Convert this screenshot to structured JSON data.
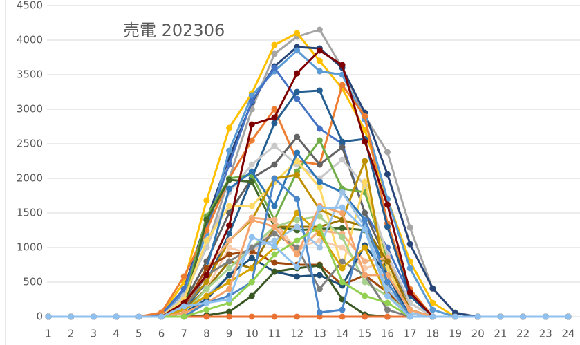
{
  "chart_data": {
    "type": "line",
    "title": "売電 202306",
    "x": [
      1,
      2,
      3,
      4,
      5,
      6,
      7,
      8,
      9,
      10,
      11,
      12,
      13,
      14,
      15,
      16,
      17,
      18,
      19,
      20,
      21,
      22,
      23,
      24
    ],
    "xlim": [
      1,
      24
    ],
    "xticks": [
      1,
      2,
      3,
      4,
      5,
      6,
      7,
      8,
      9,
      10,
      11,
      12,
      13,
      14,
      15,
      16,
      17,
      18,
      19,
      20,
      21,
      22,
      23,
      24
    ],
    "ylim": [
      0,
      4500
    ],
    "yticks": [
      0,
      500,
      1000,
      1500,
      2000,
      2500,
      3000,
      3500,
      4000,
      4500
    ],
    "grid": true,
    "series": [
      {
        "color": "#a5a5a5",
        "values": [
          0,
          0,
          0,
          0,
          0,
          20,
          300,
          1000,
          2000,
          3000,
          3800,
          4050,
          4150,
          3600,
          2900,
          2380,
          1290,
          400,
          60,
          0,
          0,
          0,
          0,
          0
        ]
      },
      {
        "color": "#ffc000",
        "values": [
          0,
          0,
          0,
          0,
          0,
          30,
          500,
          1680,
          2730,
          3230,
          3930,
          4100,
          3700,
          3300,
          2700,
          1700,
          800,
          200,
          0,
          0,
          0,
          0,
          0,
          0
        ]
      },
      {
        "color": "#264478",
        "values": [
          0,
          0,
          0,
          0,
          0,
          30,
          400,
          1400,
          2300,
          3100,
          3620,
          3900,
          3880,
          3600,
          2950,
          2060,
          1050,
          410,
          50,
          0,
          0,
          0,
          0,
          0
        ]
      },
      {
        "color": "#5b9bd5",
        "values": [
          0,
          0,
          0,
          0,
          0,
          20,
          350,
          1200,
          2400,
          3200,
          3550,
          3850,
          3550,
          3500,
          2850,
          1700,
          700,
          100,
          0,
          0,
          0,
          0,
          0,
          0
        ]
      },
      {
        "color": "#4472c4",
        "values": [
          0,
          0,
          0,
          0,
          0,
          30,
          400,
          1300,
          2200,
          3120,
          3600,
          3150,
          2720,
          2500,
          1500,
          1000,
          300,
          0,
          0,
          0,
          0,
          0,
          0,
          0
        ]
      },
      {
        "color": "#ed7d31",
        "values": [
          0,
          0,
          0,
          0,
          0,
          60,
          580,
          1250,
          2000,
          2550,
          3000,
          2250,
          2200,
          3350,
          2900,
          1350,
          400,
          0,
          0,
          0,
          0,
          0,
          0,
          0
        ]
      },
      {
        "color": "#636363",
        "values": [
          0,
          0,
          0,
          0,
          0,
          0,
          200,
          800,
          1500,
          2000,
          2200,
          2600,
          2200,
          2450,
          1500,
          800,
          200,
          0,
          0,
          0,
          0,
          0,
          0,
          0
        ]
      },
      {
        "color": "#255e91",
        "values": [
          0,
          0,
          0,
          0,
          0,
          0,
          100,
          500,
          1200,
          2000,
          2800,
          3250,
          3270,
          2530,
          2570,
          1300,
          300,
          0,
          0,
          0,
          0,
          0,
          0,
          0
        ]
      },
      {
        "color": "#c9c9c9",
        "values": [
          0,
          0,
          0,
          0,
          0,
          0,
          300,
          1000,
          1800,
          2200,
          2470,
          2200,
          2000,
          2270,
          1900,
          900,
          200,
          0,
          0,
          0,
          0,
          0,
          0,
          0
        ]
      },
      {
        "color": "#70ad47",
        "values": [
          0,
          0,
          0,
          0,
          0,
          0,
          200,
          1450,
          2000,
          2050,
          1400,
          2100,
          2550,
          1850,
          1800,
          800,
          100,
          0,
          0,
          0,
          0,
          0,
          0,
          0
        ]
      },
      {
        "color": "#43682b",
        "values": [
          0,
          0,
          0,
          0,
          0,
          0,
          100,
          1400,
          1980,
          1950,
          1300,
          1250,
          1270,
          1280,
          1250,
          700,
          100,
          0,
          0,
          0,
          0,
          0,
          0,
          0
        ]
      },
      {
        "color": "#ffd966",
        "values": [
          0,
          0,
          0,
          0,
          0,
          0,
          250,
          1100,
          1600,
          1600,
          1950,
          2250,
          1870,
          700,
          1950,
          700,
          100,
          0,
          0,
          0,
          0,
          0,
          0,
          0
        ]
      },
      {
        "color": "#2e75b6",
        "values": [
          0,
          0,
          0,
          0,
          0,
          0,
          100,
          700,
          1850,
          2100,
          1600,
          2370,
          1950,
          1800,
          1400,
          600,
          100,
          0,
          0,
          0,
          0,
          0,
          0,
          0
        ]
      },
      {
        "color": "#bf9000",
        "values": [
          0,
          0,
          0,
          0,
          0,
          0,
          150,
          500,
          1100,
          1400,
          2000,
          2050,
          1550,
          1400,
          2250,
          400,
          50,
          0,
          0,
          0,
          0,
          0,
          0,
          0
        ]
      },
      {
        "color": "#f4b183",
        "values": [
          0,
          0,
          0,
          0,
          0,
          0,
          100,
          700,
          1100,
          1430,
          1400,
          930,
          1250,
          1200,
          800,
          850,
          50,
          0,
          0,
          0,
          0,
          0,
          0,
          0
        ]
      },
      {
        "color": "#f8cbad",
        "values": [
          0,
          0,
          0,
          0,
          0,
          0,
          50,
          400,
          1000,
          900,
          1300,
          1000,
          1100,
          1000,
          700,
          800,
          100,
          0,
          0,
          0,
          0,
          0,
          0,
          0
        ]
      },
      {
        "color": "#9e480e",
        "values": [
          0,
          0,
          0,
          0,
          0,
          0,
          150,
          700,
          900,
          950,
          780,
          750,
          750,
          460,
          600,
          350,
          50,
          0,
          0,
          0,
          0,
          0,
          0,
          0
        ]
      },
      {
        "color": "#997300",
        "values": [
          0,
          0,
          0,
          0,
          0,
          0,
          100,
          400,
          800,
          700,
          1300,
          1300,
          1300,
          1400,
          1300,
          800,
          100,
          0,
          0,
          0,
          0,
          0,
          0,
          0
        ]
      },
      {
        "color": "#a9d18e",
        "values": [
          0,
          0,
          0,
          0,
          0,
          0,
          50,
          400,
          700,
          1000,
          1300,
          1400,
          1450,
          1150,
          500,
          300,
          50,
          0,
          0,
          0,
          0,
          0,
          0,
          0
        ]
      },
      {
        "color": "#9dc3e6",
        "values": [
          0,
          0,
          0,
          0,
          0,
          0,
          50,
          300,
          600,
          1000,
          1100,
          1300,
          1000,
          1800,
          1300,
          400,
          50,
          0,
          0,
          0,
          0,
          0,
          0,
          0
        ]
      },
      {
        "color": "#1f4e79",
        "values": [
          0,
          0,
          0,
          0,
          0,
          0,
          50,
          250,
          600,
          850,
          650,
          580,
          600,
          450,
          1030,
          600,
          0,
          0,
          0,
          0,
          0,
          0,
          0,
          0
        ]
      },
      {
        "color": "#385723",
        "values": [
          0,
          0,
          0,
          0,
          0,
          0,
          0,
          20,
          70,
          300,
          650,
          700,
          740,
          250,
          30,
          0,
          0,
          0,
          0,
          0,
          0,
          0,
          0,
          0
        ]
      },
      {
        "color": "#e97132",
        "values": [
          0,
          0,
          0,
          0,
          0,
          0,
          0,
          0,
          0,
          0,
          0,
          0,
          0,
          0,
          0,
          0,
          0,
          0,
          0,
          0,
          0,
          0,
          0,
          0
        ]
      },
      {
        "color": "#7f7f7f",
        "values": [
          0,
          0,
          0,
          0,
          0,
          0,
          100,
          600,
          800,
          1000,
          1200,
          1000,
          400,
          800,
          600,
          100,
          0,
          0,
          0,
          0,
          0,
          0,
          0,
          0
        ]
      },
      {
        "color": "#d6a300",
        "values": [
          0,
          0,
          0,
          0,
          0,
          0,
          100,
          300,
          500,
          700,
          1000,
          1500,
          1200,
          700,
          1000,
          300,
          0,
          0,
          0,
          0,
          0,
          0,
          0,
          0
        ]
      },
      {
        "color": "#f4a46b",
        "values": [
          0,
          0,
          0,
          0,
          0,
          0,
          50,
          200,
          400,
          1400,
          1300,
          900,
          1600,
          1500,
          600,
          600,
          100,
          0,
          0,
          0,
          0,
          0,
          0,
          0
        ]
      },
      {
        "color": "#4a86c8",
        "values": [
          0,
          0,
          0,
          0,
          0,
          0,
          0,
          200,
          300,
          500,
          2000,
          1700,
          60,
          100,
          1400,
          500,
          0,
          0,
          0,
          0,
          0,
          0,
          0,
          0
        ]
      },
      {
        "color": "#92d050",
        "values": [
          0,
          0,
          0,
          0,
          0,
          0,
          0,
          100,
          200,
          500,
          900,
          1100,
          1300,
          500,
          300,
          200,
          0,
          0,
          0,
          0,
          0,
          0,
          0,
          0
        ]
      },
      {
        "color": "#7f0000",
        "values": [
          0,
          0,
          0,
          0,
          0,
          0,
          200,
          600,
          1320,
          2780,
          2880,
          3520,
          3850,
          3640,
          2530,
          1620,
          350,
          0,
          0,
          0,
          0,
          0,
          0,
          0
        ]
      },
      {
        "color": "#8fc1f0",
        "values": [
          0,
          0,
          0,
          0,
          0,
          0,
          150,
          200,
          250,
          1150,
          1020,
          720,
          1570,
          1580,
          1260,
          300,
          0,
          0,
          0,
          0,
          0,
          0,
          0,
          0
        ]
      }
    ]
  }
}
